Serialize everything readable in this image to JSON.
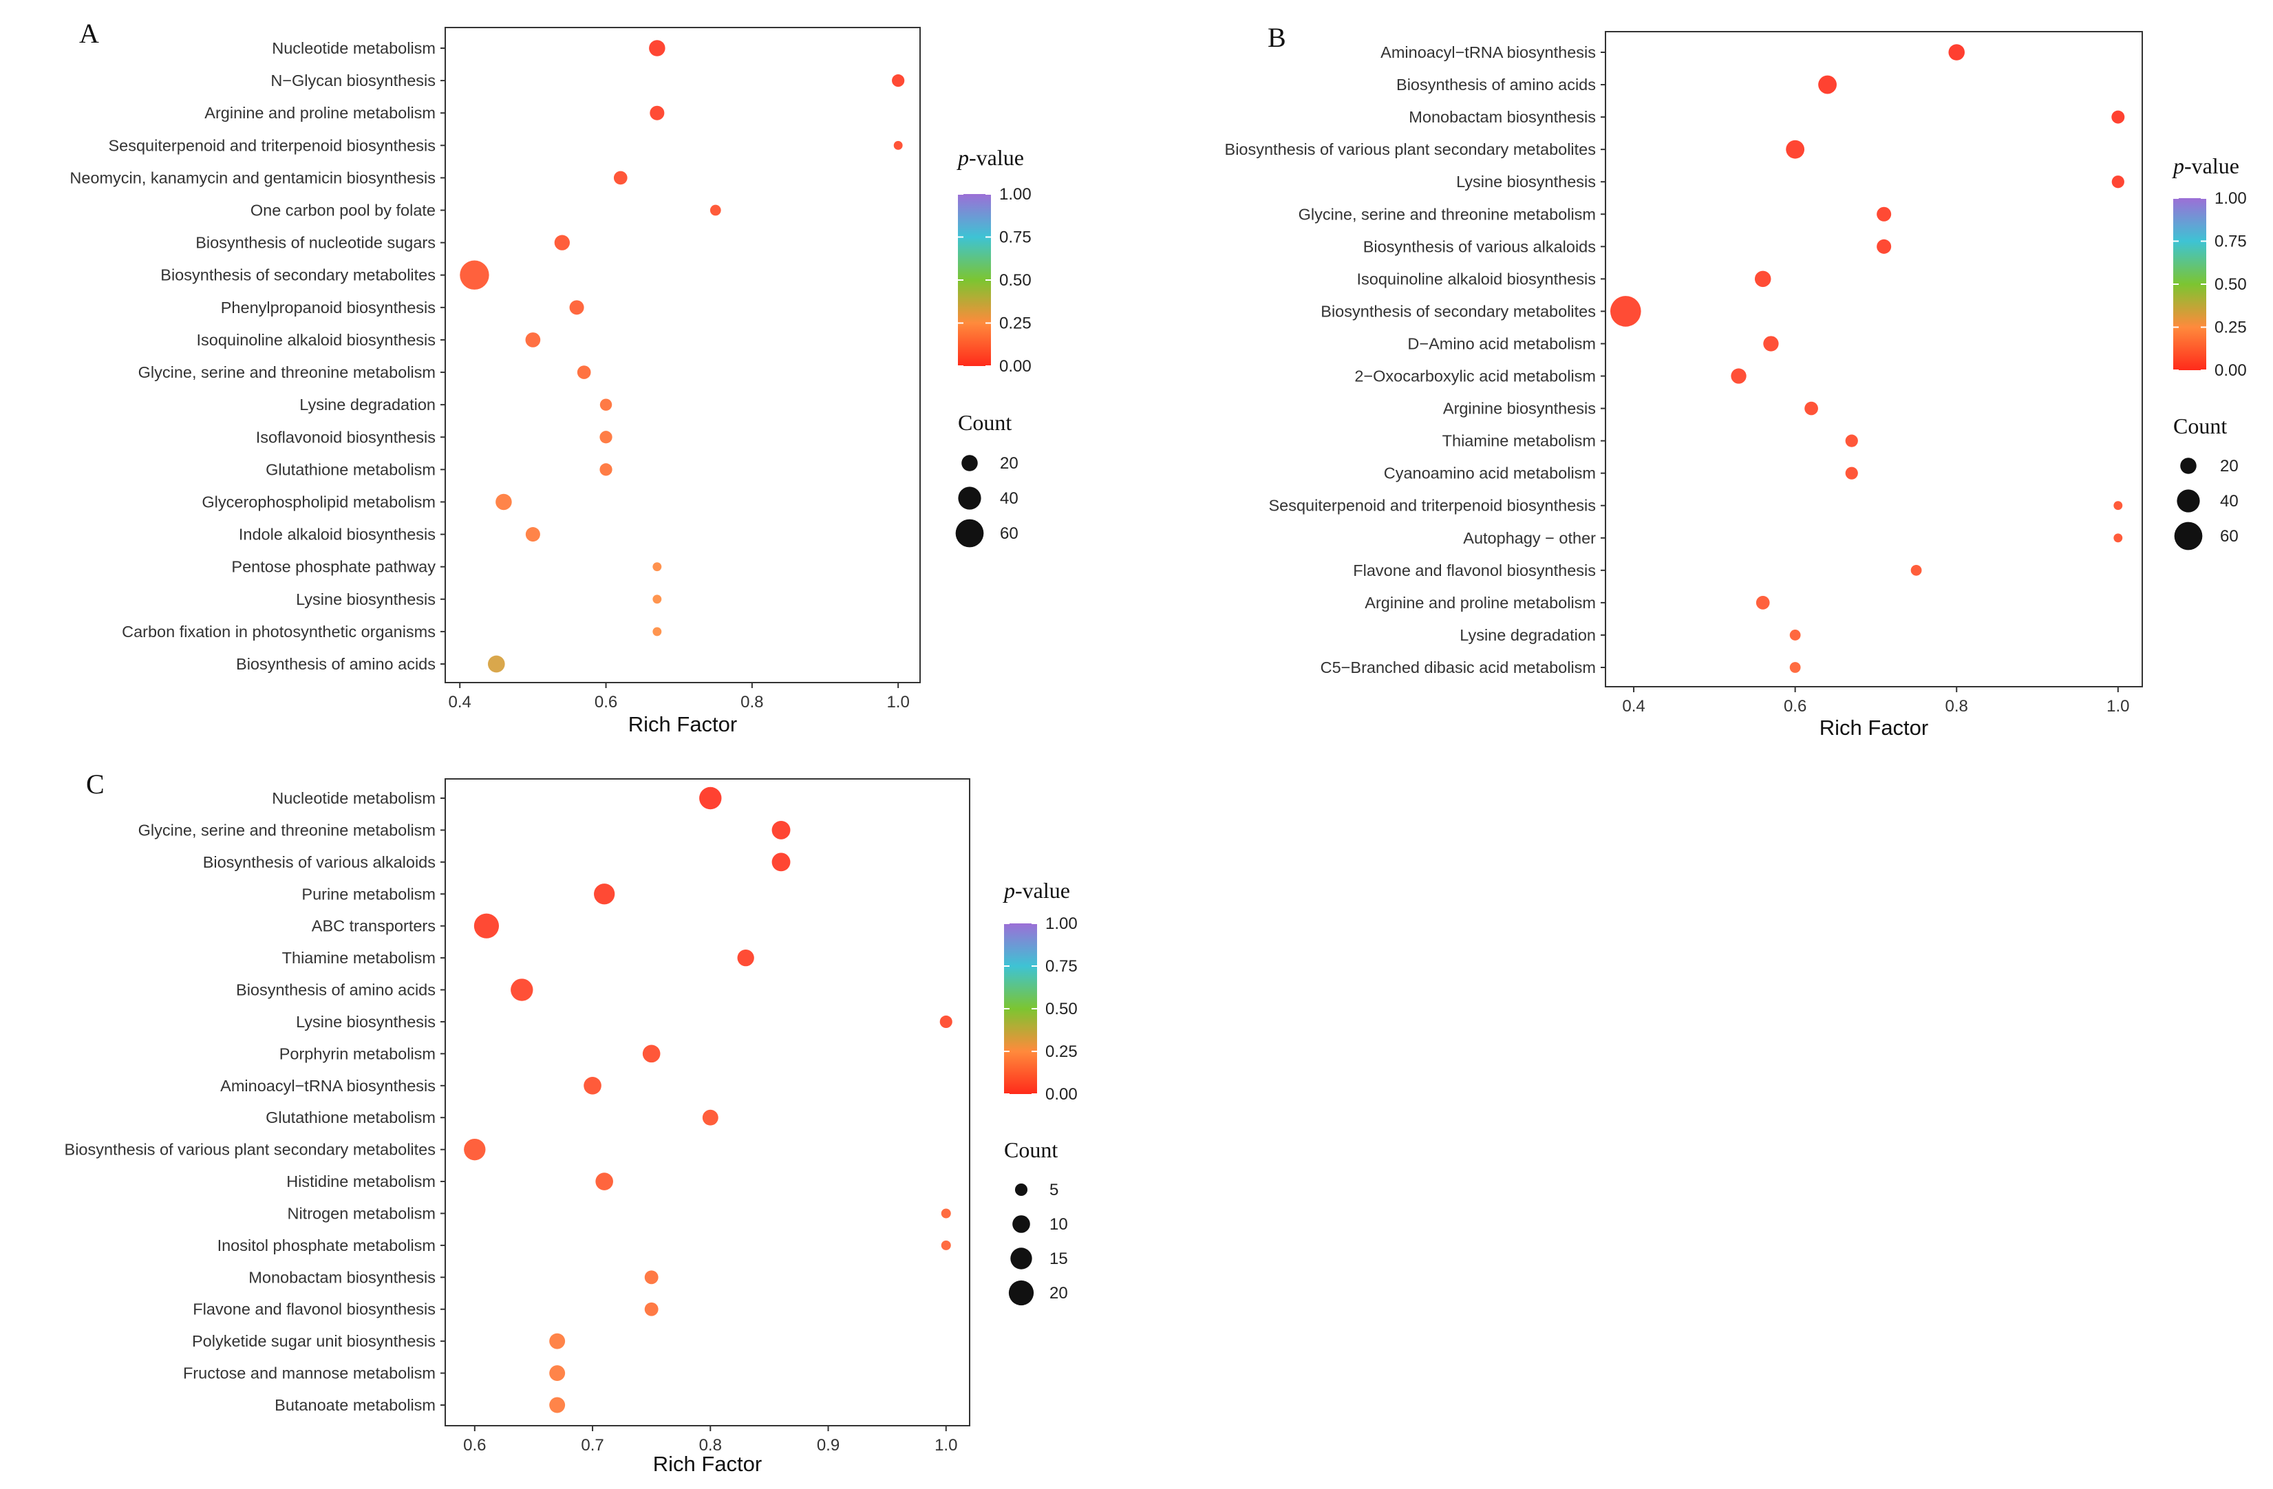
{
  "figure": {
    "pvalue_legend_title": "p-value",
    "pvalue_title_italic": "p",
    "pvalue_title_rest": "-value",
    "pvalue_ticks": [
      "1.00",
      "0.75",
      "0.50",
      "0.25",
      "0.00"
    ],
    "count_legend_title": "Count",
    "color_scale": [
      "#ff2a1a",
      "#ff8a3c",
      "#7cc531",
      "#3ec3d4",
      "#9c6fd6"
    ]
  },
  "chart_data": [
    {
      "panel": "A",
      "type": "scatter",
      "xlabel": "Rich Factor",
      "xlim": [
        0.38,
        1.03
      ],
      "xticks": [
        0.4,
        0.6,
        0.8,
        1.0
      ],
      "xtick_labels": [
        "0.4",
        "0.6",
        "0.8",
        "1.0"
      ],
      "count_legend": [
        20,
        40,
        60
      ],
      "count_max": 70,
      "categories": [
        "Nucleotide metabolism",
        "N−Glycan biosynthesis",
        "Arginine and proline metabolism",
        "Sesquiterpenoid and triterpenoid biosynthesis",
        "Neomycin, kanamycin and gentamicin biosynthesis",
        "One carbon pool by folate",
        "Biosynthesis of nucleotide sugars",
        "Biosynthesis of secondary metabolites",
        "Phenylpropanoid biosynthesis",
        "Isoquinoline alkaloid biosynthesis",
        "Glycine, serine and threonine metabolism",
        "Lysine degradation",
        "Isoflavonoid biosynthesis",
        "Glutathione metabolism",
        "Glycerophospholipid metabolism",
        "Indole alkaloid biosynthesis",
        "Pentose phosphate pathway",
        "Lysine biosynthesis",
        "Carbon fixation in photosynthetic organisms",
        "Biosynthesis of amino acids"
      ],
      "rich_factor": [
        0.67,
        1.0,
        0.67,
        1.0,
        0.62,
        0.75,
        0.54,
        0.42,
        0.56,
        0.5,
        0.57,
        0.6,
        0.6,
        0.6,
        0.46,
        0.5,
        0.67,
        0.67,
        0.67,
        0.45
      ],
      "count": [
        20,
        12,
        16,
        6,
        14,
        9,
        18,
        65,
        16,
        17,
        14,
        11,
        12,
        12,
        20,
        16,
        6,
        6,
        6,
        22
      ],
      "pvalue": [
        0.02,
        0.03,
        0.04,
        0.06,
        0.07,
        0.08,
        0.09,
        0.1,
        0.12,
        0.14,
        0.15,
        0.17,
        0.18,
        0.18,
        0.2,
        0.2,
        0.24,
        0.25,
        0.25,
        0.33
      ]
    },
    {
      "panel": "B",
      "type": "scatter",
      "xlabel": "Rich Factor",
      "xlim": [
        0.365,
        1.03
      ],
      "xticks": [
        0.4,
        0.6,
        0.8,
        1.0
      ],
      "xtick_labels": [
        "0.4",
        "0.6",
        "0.8",
        "1.0"
      ],
      "count_legend": [
        20,
        40,
        60
      ],
      "count_max": 70,
      "categories": [
        "Aminoacyl−tRNA biosynthesis",
        "Biosynthesis of amino acids",
        "Monobactam biosynthesis",
        "Biosynthesis of various plant secondary metabolites",
        "Lysine biosynthesis",
        "Glycine, serine and threonine metabolism",
        "Biosynthesis of various alkaloids",
        "Isoquinoline alkaloid biosynthesis",
        "Biosynthesis of secondary metabolites",
        "D−Amino acid metabolism",
        "2−Oxocarboxylic acid metabolism",
        "Arginine biosynthesis",
        "Thiamine metabolism",
        "Cyanoamino acid metabolism",
        "Sesquiterpenoid and triterpenoid biosynthesis",
        "Autophagy − other",
        "Flavone and flavonol biosynthesis",
        "Arginine and proline metabolism",
        "Lysine degradation",
        "C5−Branched dibasic acid metabolism"
      ],
      "rich_factor": [
        0.8,
        0.64,
        1.0,
        0.6,
        1.0,
        0.71,
        0.71,
        0.56,
        0.39,
        0.57,
        0.53,
        0.62,
        0.67,
        0.67,
        1.0,
        1.0,
        0.75,
        0.56,
        0.6,
        0.6
      ],
      "count": [
        20,
        26,
        13,
        26,
        12,
        16,
        16,
        20,
        72,
        18,
        18,
        14,
        12,
        12,
        6,
        6,
        9,
        14,
        9,
        9
      ],
      "pvalue": [
        0.0,
        0.01,
        0.01,
        0.02,
        0.02,
        0.03,
        0.03,
        0.04,
        0.04,
        0.05,
        0.05,
        0.06,
        0.07,
        0.07,
        0.08,
        0.08,
        0.09,
        0.1,
        0.12,
        0.13
      ]
    },
    {
      "panel": "C",
      "type": "scatter",
      "xlabel": "Rich Factor",
      "xlim": [
        0.575,
        1.02
      ],
      "xticks": [
        0.6,
        0.7,
        0.8,
        0.9,
        1.0
      ],
      "xtick_labels": [
        "0.6",
        "0.7",
        "0.8",
        "0.9",
        "1.0"
      ],
      "count_legend": [
        5,
        10,
        15,
        20
      ],
      "count_max": 22,
      "categories": [
        "Nucleotide metabolism",
        "Glycine, serine and threonine metabolism",
        "Biosynthesis of various alkaloids",
        "Purine metabolism",
        "ABC transporters",
        "Thiamine metabolism",
        "Biosynthesis of amino acids",
        "Lysine biosynthesis",
        "Porphyrin metabolism",
        "Aminoacyl−tRNA biosynthesis",
        "Glutathione metabolism",
        "Biosynthesis of various plant secondary metabolites",
        "Histidine metabolism",
        "Nitrogen metabolism",
        "Inositol phosphate metabolism",
        "Monobactam biosynthesis",
        "Flavone and flavonol biosynthesis",
        "Polyketide sugar unit biosynthesis",
        "Fructose and mannose metabolism",
        "Butanoate metabolism"
      ],
      "rich_factor": [
        0.8,
        0.86,
        0.86,
        0.71,
        0.61,
        0.83,
        0.64,
        1.0,
        0.75,
        0.7,
        0.8,
        0.6,
        0.71,
        1.0,
        1.0,
        0.75,
        0.75,
        0.67,
        0.67,
        0.67
      ],
      "count": [
        16,
        11,
        11,
        14,
        20,
        9,
        16,
        5,
        10,
        10,
        8,
        15,
        10,
        3,
        3,
        6,
        6,
        8,
        8,
        8
      ],
      "pvalue": [
        0.01,
        0.02,
        0.02,
        0.03,
        0.03,
        0.04,
        0.05,
        0.06,
        0.07,
        0.08,
        0.09,
        0.1,
        0.11,
        0.13,
        0.13,
        0.17,
        0.17,
        0.2,
        0.2,
        0.2
      ]
    }
  ]
}
